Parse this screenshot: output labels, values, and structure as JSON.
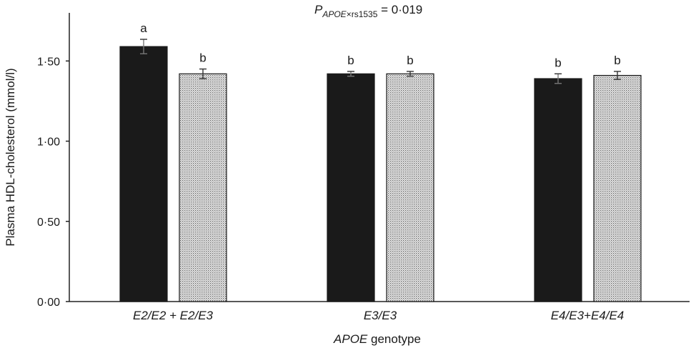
{
  "chart_data": {
    "type": "bar",
    "title": {
      "p_symbol": "P",
      "p_subscript_italic": "APOE",
      "p_subscript_rest": "×rs1535",
      "value_text": " = 0·019"
    },
    "ylabel": "Plasma HDL-cholesterol (mmol/l)",
    "xlabel": {
      "italic": "APOE",
      "rest": " genotype"
    },
    "ylim": [
      0,
      1.8
    ],
    "yticks": [
      {
        "value": 0,
        "label": "0·00"
      },
      {
        "value": 0.5,
        "label": "0·50"
      },
      {
        "value": 1.0,
        "label": "1·00"
      },
      {
        "value": 1.5,
        "label": "1·50"
      }
    ],
    "categories": [
      "E2/E2 + E2/E3",
      "E3/E3",
      "E4/E3+E4/E4"
    ],
    "series": [
      {
        "fill": "#1a1a1a",
        "pattern": "solid",
        "values": [
          1.59,
          1.42,
          1.39
        ],
        "errors": [
          0.045,
          0.015,
          0.03
        ],
        "letters": [
          "a",
          "b",
          "b"
        ]
      },
      {
        "fill": "#dcdcdc",
        "pattern": "dotted",
        "values": [
          1.42,
          1.42,
          1.41
        ],
        "errors": [
          0.03,
          0.015,
          0.025
        ],
        "letters": [
          "b",
          "b",
          "b"
        ]
      }
    ],
    "grid": false,
    "legend": "none"
  }
}
